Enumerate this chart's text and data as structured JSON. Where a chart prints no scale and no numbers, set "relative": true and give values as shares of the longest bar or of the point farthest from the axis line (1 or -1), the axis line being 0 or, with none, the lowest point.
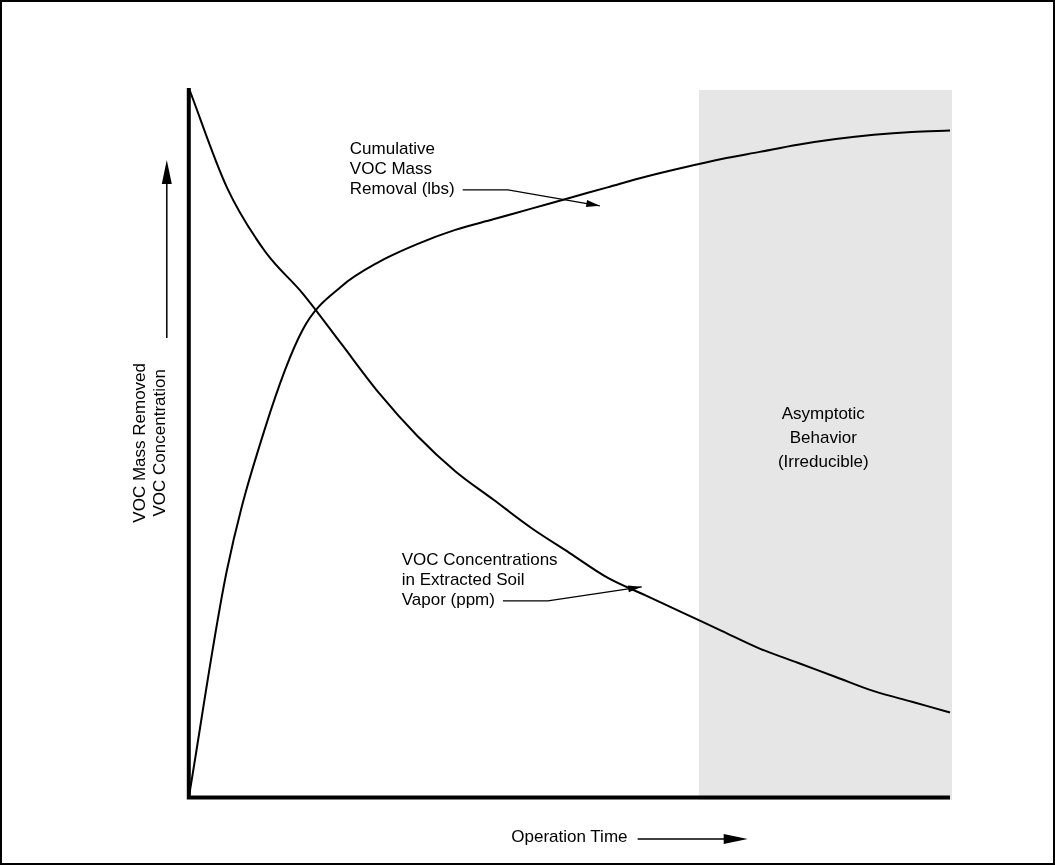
{
  "chart_data": {
    "type": "line",
    "relative": true,
    "xlabel": "Operation Time",
    "ylabel": "VOC Mass Removed\nVOC Concentration",
    "categories": [
      null,
      null,
      null,
      null,
      null,
      null,
      null,
      null,
      null,
      null,
      null,
      null,
      null,
      null,
      null,
      null,
      null,
      null,
      null,
      null,
      null
    ],
    "series": [
      {
        "color": "#000000",
        "values": [
          0,
          0.32,
          0.52,
          0.66,
          0.72,
          0.755,
          0.78,
          0.8,
          0.815,
          0.83,
          0.845,
          0.86,
          0.875,
          0.888,
          0.9,
          0.91,
          0.92,
          0.928,
          0.934,
          0.938,
          0.94
        ]
      },
      {
        "color": "#000000",
        "values": [
          1,
          0.86,
          0.77,
          0.71,
          0.64,
          0.57,
          0.51,
          0.46,
          0.42,
          0.38,
          0.345,
          0.31,
          0.285,
          0.26,
          0.235,
          0.21,
          0.19,
          0.17,
          0.15,
          0.135,
          0.12
        ]
      }
    ],
    "annotations": [
      "Cumulative VOC Mass Removal (lbs)",
      "VOC Concentrations in Extracted Soil Vapor (ppm)",
      "Asymptotic Behavior (Irreducible)"
    ],
    "legend": false,
    "marker": "none",
    "line_style": "solid"
  }
}
